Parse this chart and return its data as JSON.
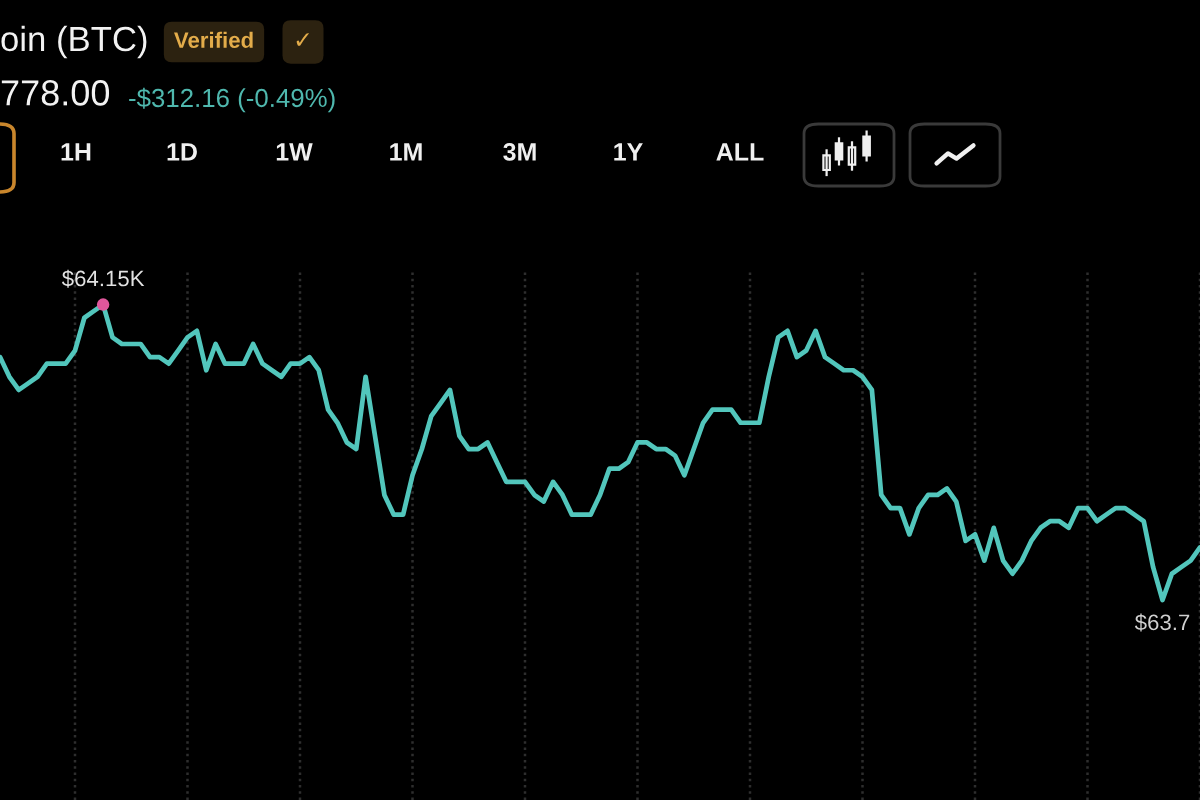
{
  "chart_data": {
    "type": "line",
    "title": "oin (BTC)",
    "subtitle": "778.00",
    "annotations": [
      "Verified",
      "✓",
      "-$312.16 (-0.49%)",
      "1H",
      "1D",
      "1W",
      "1M",
      "3M",
      "1Y",
      "ALL"
    ],
    "categories": [
      null,
      null,
      null,
      null,
      null,
      null,
      null,
      null,
      null,
      null,
      null,
      null,
      null,
      null,
      null,
      null,
      null,
      null,
      null,
      null,
      null,
      null,
      null,
      null,
      null,
      null,
      null,
      null,
      null,
      null,
      null,
      null,
      null,
      null,
      null,
      null,
      null,
      null,
      null,
      null,
      null,
      null,
      null,
      null,
      null,
      null,
      null,
      null,
      null,
      null,
      null,
      null,
      null,
      null,
      null,
      null,
      null,
      null,
      null,
      null,
      null,
      null,
      null,
      null,
      null,
      null,
      null,
      null,
      null,
      null,
      null,
      null,
      null,
      null,
      null,
      null,
      null,
      null,
      null,
      null,
      null,
      null,
      null,
      null,
      null,
      null,
      null,
      null,
      null,
      null,
      null,
      null,
      null,
      null,
      null,
      null,
      null,
      null,
      null,
      null,
      null,
      null,
      null,
      null,
      null,
      null,
      null,
      null,
      null,
      null,
      null,
      null,
      null,
      null,
      null,
      null,
      null,
      null,
      null,
      null,
      null,
      null,
      null,
      null,
      null,
      null,
      null,
      null,
      null
    ],
    "series": [
      {
        "color": "#52c6bc",
        "values": [
          64.07,
          64.04,
          64.02,
          64.03,
          64.04,
          64.06,
          64.06,
          64.06,
          64.08,
          64.13,
          64.14,
          64.15,
          64.1,
          64.09,
          64.09,
          64.09,
          64.07,
          64.07,
          64.06,
          64.08,
          64.1,
          64.11,
          64.05,
          64.09,
          64.06,
          64.06,
          64.06,
          64.09,
          64.06,
          64.05,
          64.04,
          64.06,
          64.06,
          64.07,
          64.05,
          63.99,
          63.97,
          63.94,
          63.93,
          64.04,
          63.95,
          63.86,
          63.83,
          63.83,
          63.89,
          63.93,
          63.98,
          64.0,
          64.02,
          63.95,
          63.93,
          63.93,
          63.94,
          63.91,
          63.88,
          63.88,
          63.88,
          63.86,
          63.85,
          63.88,
          63.86,
          63.83,
          63.83,
          63.83,
          63.86,
          63.9,
          63.9,
          63.91,
          63.94,
          63.94,
          63.93,
          63.93,
          63.92,
          63.89,
          63.93,
          63.97,
          63.99,
          63.99,
          63.99,
          63.97,
          63.97,
          63.97,
          64.04,
          64.1,
          64.11,
          64.07,
          64.08,
          64.11,
          64.07,
          64.06,
          64.05,
          64.05,
          64.04,
          64.02,
          63.86,
          63.84,
          63.84,
          63.8,
          63.84,
          63.86,
          63.86,
          63.87,
          63.85,
          63.79,
          63.8,
          63.76,
          63.81,
          63.76,
          63.74,
          63.76,
          63.79,
          63.81,
          63.82,
          63.82,
          63.81,
          63.84,
          63.84,
          63.82,
          63.83,
          63.84,
          63.84,
          63.83,
          63.82,
          63.75,
          63.7,
          63.74,
          63.75,
          63.76,
          63.78
        ],
        "value_labels": [
          null,
          null,
          null,
          null,
          null,
          null,
          null,
          null,
          null,
          null,
          null,
          "$64.15K",
          null,
          null,
          null,
          null,
          null,
          null,
          null,
          null,
          null,
          null,
          null,
          null,
          null,
          null,
          null,
          null,
          null,
          null,
          null,
          null,
          null,
          null,
          null,
          null,
          null,
          null,
          null,
          null,
          null,
          null,
          null,
          null,
          null,
          null,
          null,
          null,
          null,
          null,
          null,
          null,
          null,
          null,
          null,
          null,
          null,
          null,
          null,
          null,
          null,
          null,
          null,
          null,
          null,
          null,
          null,
          null,
          null,
          null,
          null,
          null,
          null,
          null,
          null,
          null,
          null,
          null,
          null,
          null,
          null,
          null,
          null,
          null,
          null,
          null,
          null,
          null,
          null,
          null,
          null,
          null,
          null,
          null,
          null,
          null,
          null,
          null,
          null,
          null,
          null,
          null,
          null,
          null,
          null,
          null,
          null,
          null,
          null,
          null,
          null,
          null,
          null,
          null,
          null,
          null,
          null,
          null,
          null,
          null,
          null,
          null,
          null,
          null,
          "$63.7",
          null,
          null,
          null,
          null
        ]
      }
    ],
    "grid": "x"
  }
}
